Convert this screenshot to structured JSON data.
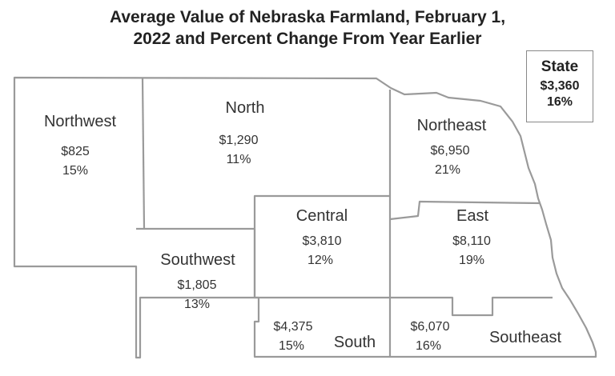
{
  "title": {
    "line1": "Average Value of Nebraska Farmland, February 1,",
    "line2": "2022 and Percent Change From Year Earlier"
  },
  "state": {
    "label": "State",
    "value": "$3,360",
    "change": "16%"
  },
  "regions": [
    {
      "key": "northwest",
      "name": "Northwest",
      "value": "$825",
      "change": "15%"
    },
    {
      "key": "north",
      "name": "North",
      "value": "$1,290",
      "change": "11%"
    },
    {
      "key": "northeast",
      "name": "Northeast",
      "value": "$6,950",
      "change": "21%"
    },
    {
      "key": "central",
      "name": "Central",
      "value": "$3,810",
      "change": "12%"
    },
    {
      "key": "east",
      "name": "East",
      "value": "$8,110",
      "change": "19%"
    },
    {
      "key": "southwest",
      "name": "Southwest",
      "value": "$1,805",
      "change": "13%"
    },
    {
      "key": "south",
      "name": "South",
      "value": "$4,375",
      "change": "15%"
    },
    {
      "key": "southeast",
      "name": "Southeast",
      "value": "$6,070",
      "change": "16%"
    }
  ],
  "colors": {
    "border": "#9a9a9a",
    "text": "#333333",
    "background": "#ffffff"
  }
}
